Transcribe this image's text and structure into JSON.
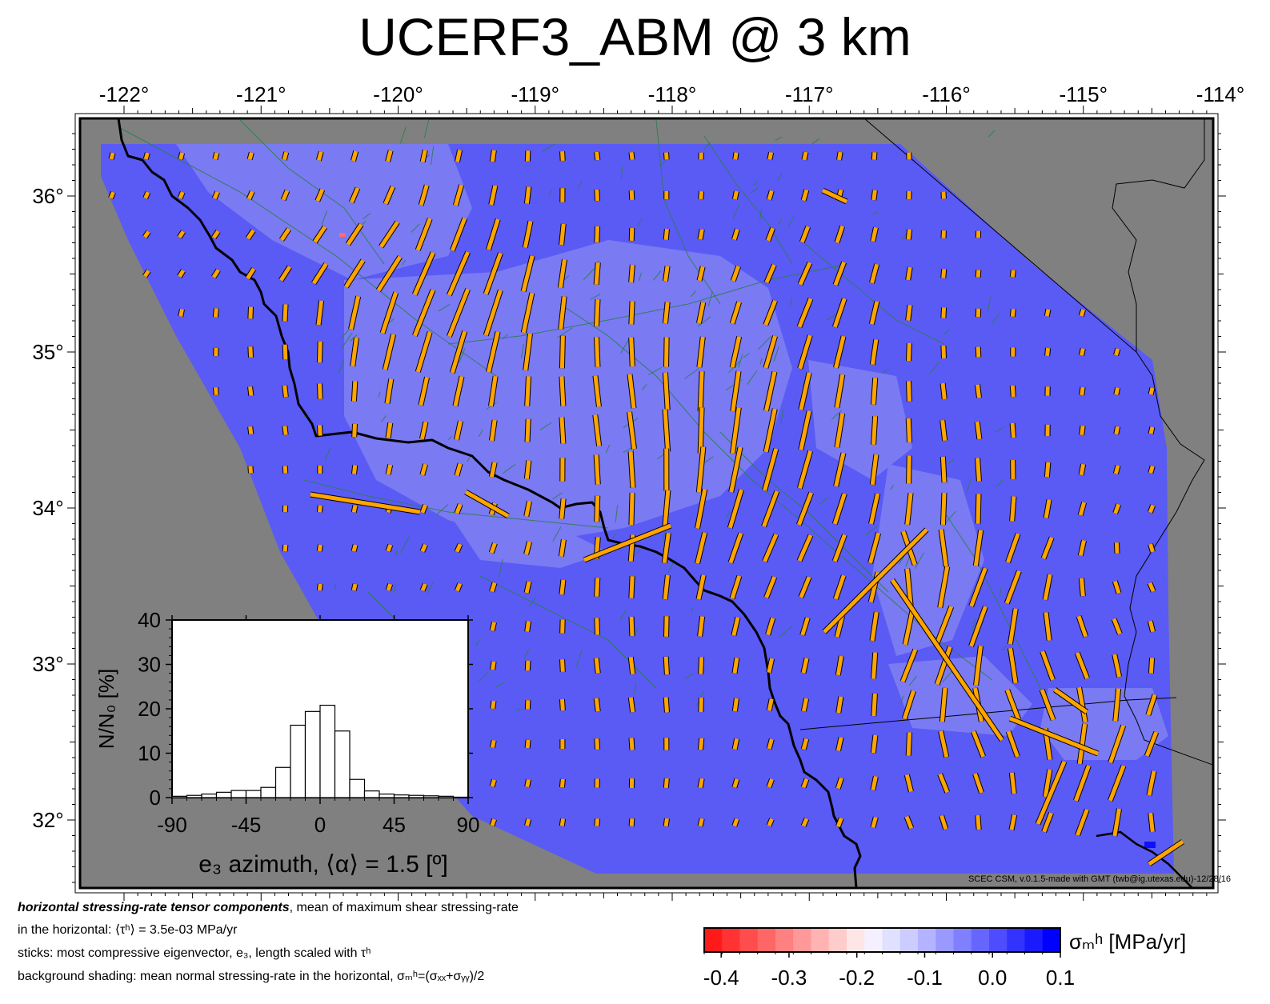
{
  "title": "UCERF3_ABM @ 3 km",
  "map": {
    "lon_labels": [
      "-122°",
      "-121°",
      "-120°",
      "-119°",
      "-118°",
      "-117°",
      "-116°",
      "-115°",
      "-114°"
    ],
    "lat_labels": [
      "36°",
      "35°",
      "34°",
      "33°",
      "32°"
    ],
    "lon_range": [
      -122,
      -114
    ],
    "lat_range": [
      31.5,
      36.5
    ],
    "background": "#808080",
    "field_color": "#5a5af5",
    "field_light_color": "#7d7df2",
    "stick_color": "#ffa500",
    "fault_color": "#2e7d4f"
  },
  "inset": {
    "ylabel": "N/N₀ [%]",
    "xlabel": "e₃ azimuth, ⟨α⟩ = 1.5 [º]",
    "x_ticks": [
      "-90",
      "-45",
      "0",
      "45",
      "90"
    ],
    "y_ticks": [
      "0",
      "10",
      "20",
      "30",
      "40"
    ]
  },
  "chart_data": {
    "type": "bar",
    "xlabel": "e₃ azimuth, ⟨α⟩ = 1.5 [º]",
    "ylabel": "N/N₀ [%]",
    "xlim": [
      -90,
      90
    ],
    "ylim": [
      0,
      40
    ],
    "bin_width": 9,
    "bin_starts": [
      -90,
      -81,
      -72,
      -63,
      -54,
      -45,
      -36,
      -27,
      -18,
      -9,
      0,
      9,
      18,
      27,
      36,
      45,
      54,
      63,
      72,
      81
    ],
    "values": [
      0.3,
      0.5,
      0.8,
      1.2,
      1.6,
      1.6,
      2.3,
      6.8,
      16.3,
      19.4,
      20.8,
      15.0,
      4.1,
      1.5,
      0.8,
      0.6,
      0.5,
      0.4,
      0.3,
      0.1
    ]
  },
  "caption": {
    "line1_bold": "horizontal stressing-rate tensor components",
    "line1_rest": ", mean of maximum shear stressing-rate",
    "line2": "in the horizontal: ⟨τʰ⟩ = 3.5e-03 MPa/yr",
    "line3": "sticks: most compressive eigenvector, e₃, length scaled with τʰ",
    "line4": "background shading: mean normal stressing-rate in the horizontal, σₘʰ=(σₓₓ+σᵧᵧ)/2"
  },
  "credit": "SCEC CSM, v.0.1.5-made with GMT (twb@ig.utexas.edu)-12/28/16",
  "colorbar": {
    "label": "σₘʰ [MPa/yr]",
    "tick_labels": [
      "-0.4",
      "-0.3",
      "-0.2",
      "-0.1",
      "0.0",
      "0.1"
    ],
    "min": -0.425,
    "max": 0.1,
    "colors": [
      "#ff1a1a",
      "#ff3333",
      "#ff4d4d",
      "#ff6666",
      "#ff8080",
      "#ff9999",
      "#ffb3b3",
      "#ffcccc",
      "#ffe6e6",
      "#f5f0ff",
      "#e0e0ff",
      "#ccccff",
      "#b3b3ff",
      "#9999ff",
      "#8080ff",
      "#6666ff",
      "#4d4dff",
      "#3333ff",
      "#1a1aff",
      "#0000ff"
    ]
  }
}
